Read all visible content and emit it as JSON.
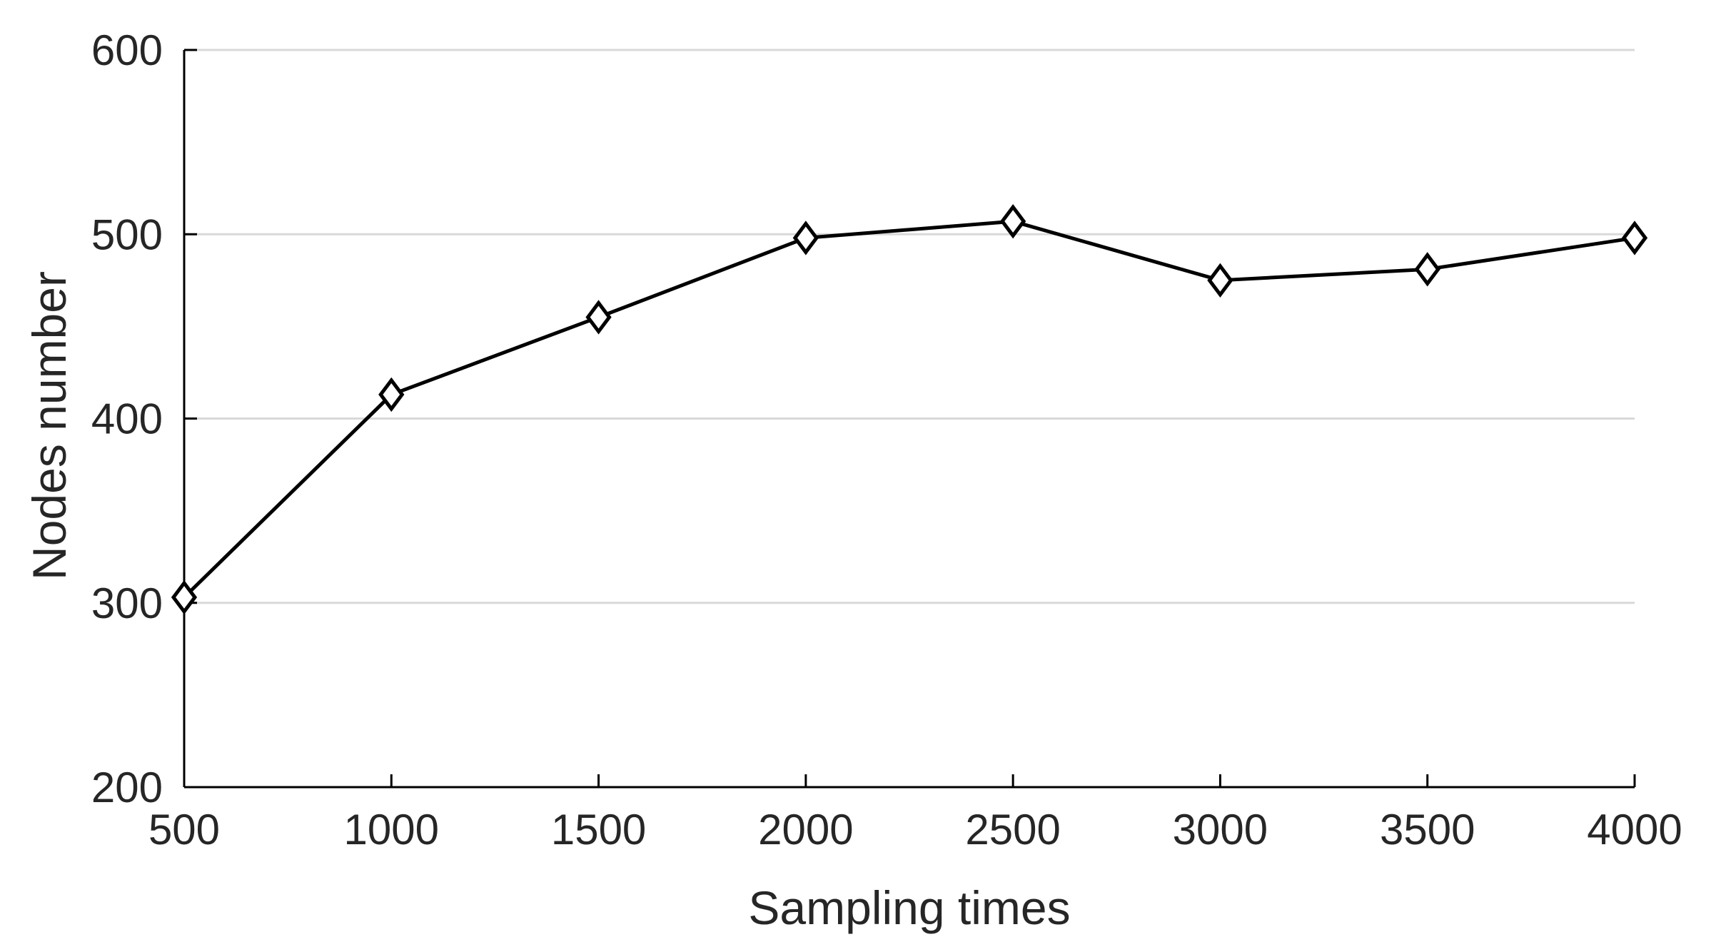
{
  "chart_data": {
    "type": "line",
    "title": "",
    "xlabel": "Sampling times",
    "ylabel": "Nodes number",
    "x": [
      500,
      1000,
      1500,
      2000,
      2500,
      3000,
      3500,
      4000
    ],
    "series": [
      {
        "values": [
          303,
          413,
          455,
          498,
          507,
          475,
          481,
          498
        ],
        "marker": "diamond",
        "color": "#000000"
      }
    ],
    "xlim": [
      500,
      4000
    ],
    "ylim": [
      200,
      600
    ],
    "xticks": [
      "500",
      "1000",
      "1500",
      "2000",
      "2500",
      "3000",
      "3500",
      "4000"
    ],
    "yticks": [
      "200",
      "300",
      "400",
      "500",
      "600"
    ],
    "grid": "horizontal",
    "gridColor": "#d9d9d9",
    "axisColor": "#000000"
  }
}
